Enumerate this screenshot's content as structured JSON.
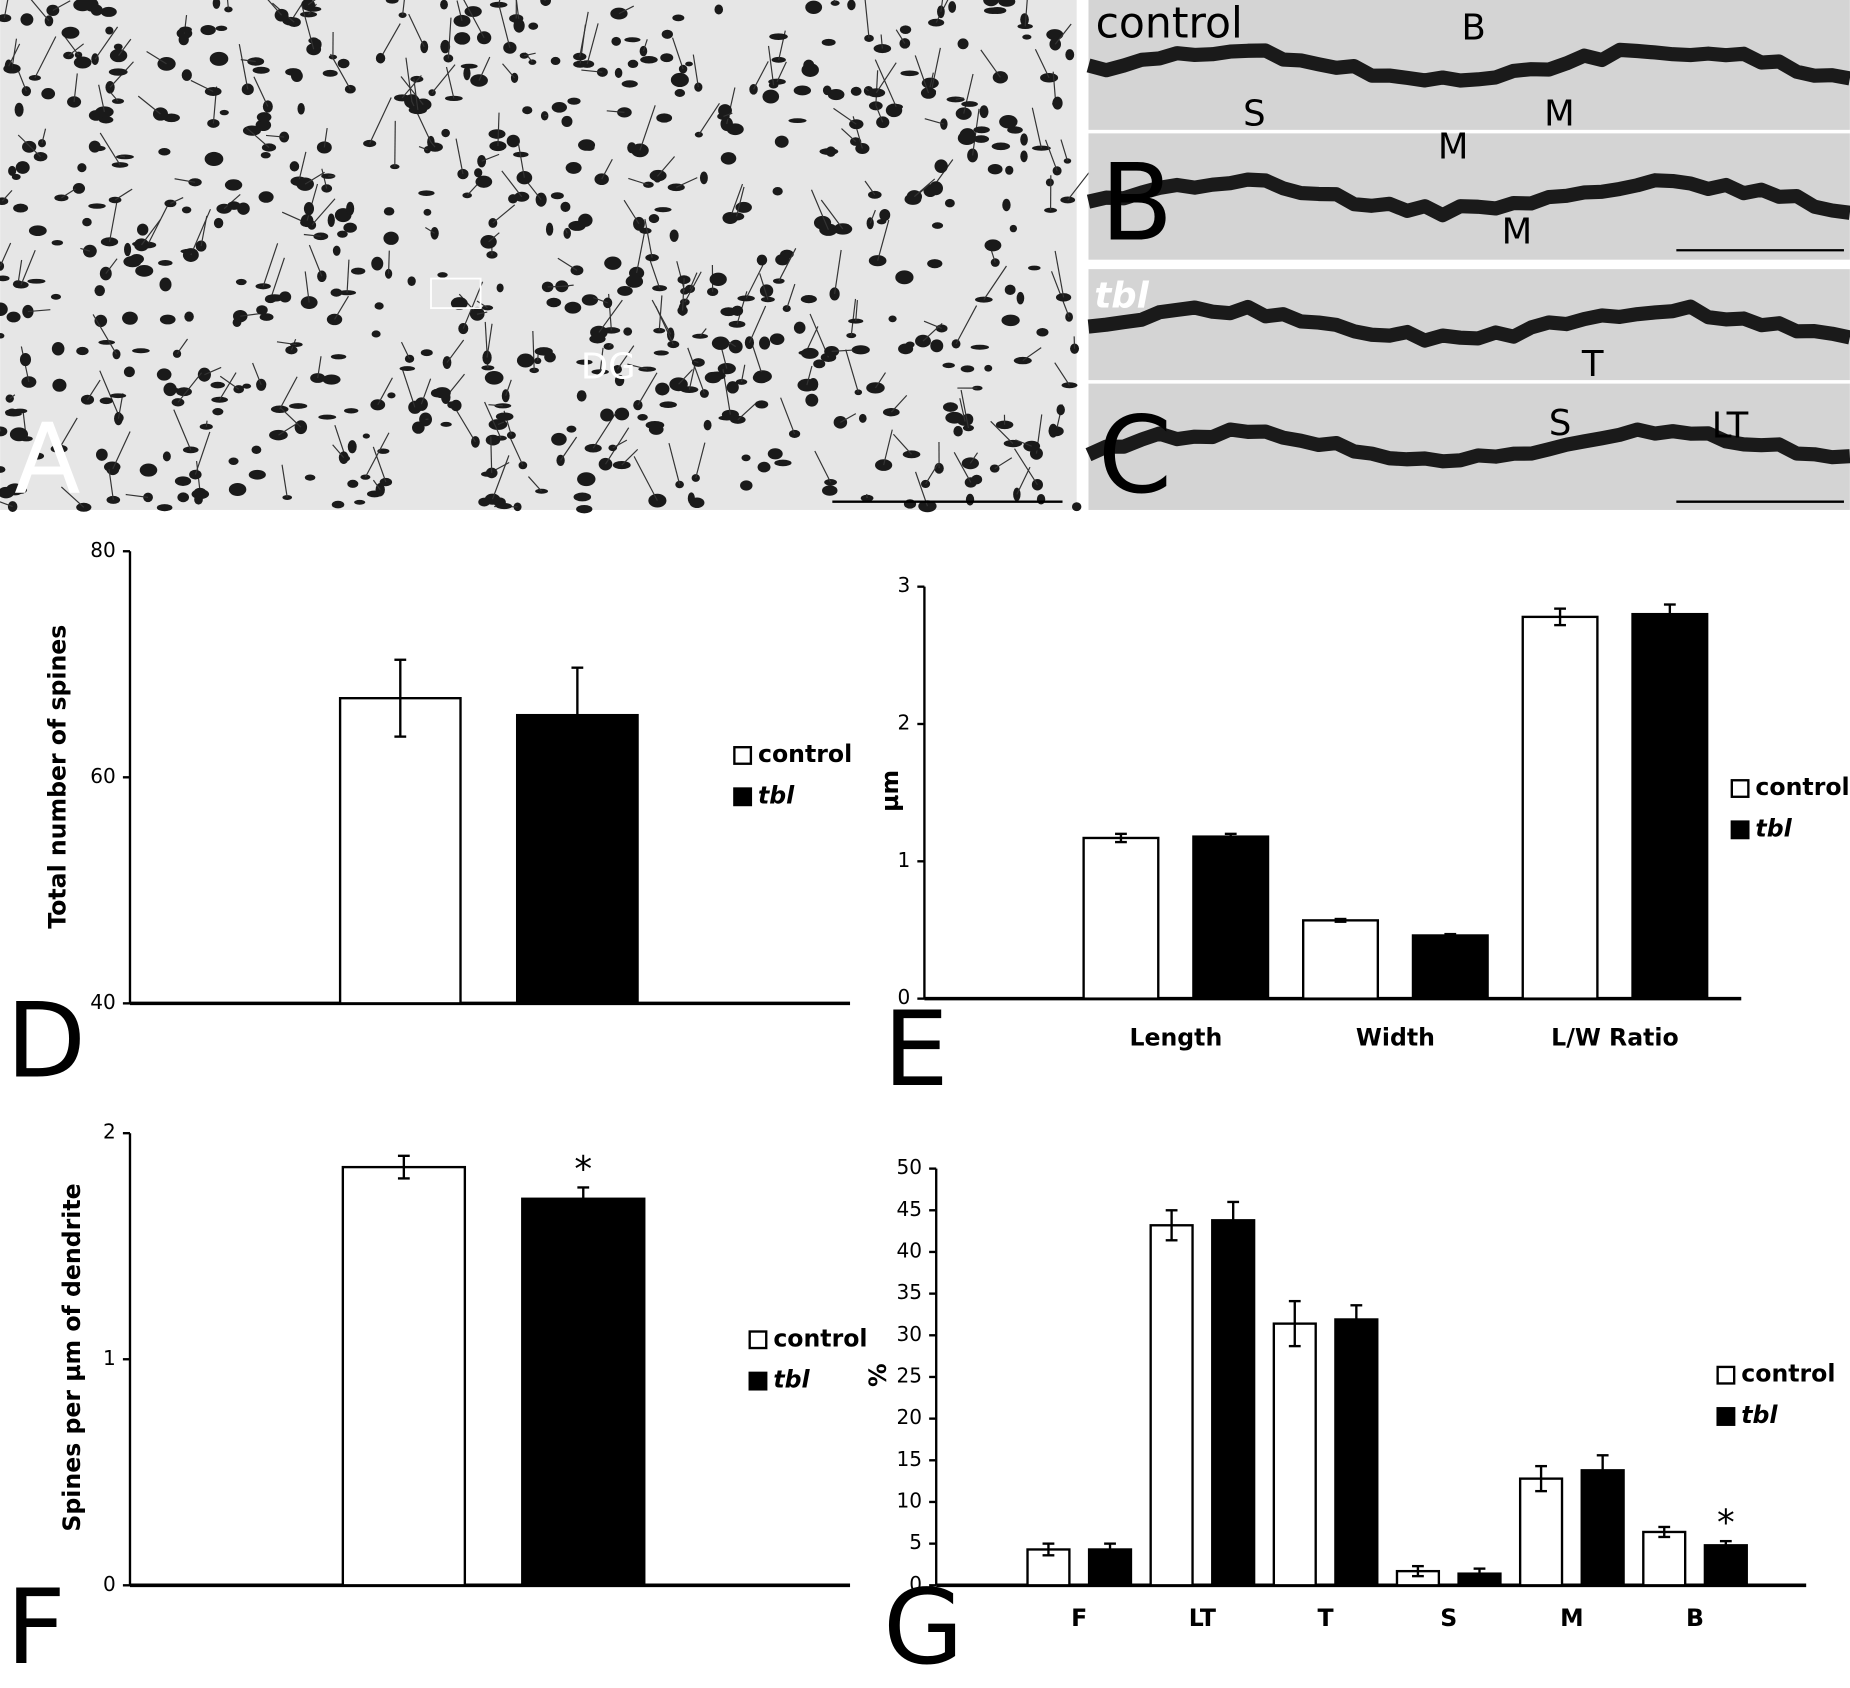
{
  "micrographs": [
    {
      "panel": "A",
      "annotations": [
        "DG"
      ]
    },
    {
      "panel": "B",
      "condition": "control",
      "annotations": [
        "B",
        "S",
        "M",
        "M",
        "M"
      ]
    },
    {
      "panel": "C",
      "condition": "tbl",
      "annotations": [
        "T",
        "S",
        "LT"
      ]
    }
  ],
  "chart_data": [
    {
      "type": "bar",
      "panel_label": "D",
      "y_label": "Total number of spines",
      "categories": [
        null
      ],
      "series": [
        {
          "name": "control",
          "color": "#ffffff",
          "values": [
            67
          ],
          "errors": [
            3.4
          ]
        },
        {
          "name": "tbl",
          "color": "#000000",
          "font_style": "italic",
          "values": [
            65.5
          ],
          "errors": [
            4.2
          ]
        }
      ],
      "ylim": [
        40,
        80
      ],
      "yticks": [
        40,
        60,
        80
      ]
    },
    {
      "type": "bar",
      "panel_label": "E",
      "y_label": "µm",
      "categories": [
        "Length",
        "Width",
        "L/W Ratio"
      ],
      "series": [
        {
          "name": "control",
          "color": "#ffffff",
          "values": [
            1.17,
            0.57,
            2.78
          ],
          "errors": [
            0.03,
            0.01,
            0.06
          ]
        },
        {
          "name": "tbl",
          "color": "#000000",
          "font_style": "italic",
          "values": [
            1.18,
            0.46,
            2.8
          ],
          "errors": [
            0.02,
            0.01,
            0.07
          ]
        }
      ],
      "ylim": [
        0,
        3
      ],
      "yticks": [
        0,
        1,
        2,
        3
      ]
    },
    {
      "type": "bar",
      "panel_label": "F",
      "y_label": "Spines per µm of dendrite",
      "categories": [
        null
      ],
      "series": [
        {
          "name": "control",
          "color": "#ffffff",
          "values": [
            1.85
          ],
          "errors": [
            0.05
          ]
        },
        {
          "name": "tbl",
          "color": "#000000",
          "font_style": "italic",
          "values": [
            1.71
          ],
          "errors": [
            0.05
          ],
          "markers": [
            "*"
          ]
        }
      ],
      "ylim": [
        0,
        2
      ],
      "yticks": [
        0,
        1,
        2
      ]
    },
    {
      "type": "bar",
      "panel_label": "G",
      "y_label": "%",
      "categories": [
        "F",
        "LT",
        "T",
        "S",
        "M",
        "B"
      ],
      "series": [
        {
          "name": "control",
          "color": "#ffffff",
          "values": [
            4.3,
            43.2,
            31.4,
            1.7,
            12.8,
            6.4
          ],
          "errors": [
            0.7,
            1.8,
            2.7,
            0.6,
            1.5,
            0.6
          ]
        },
        {
          "name": "tbl",
          "color": "#000000",
          "font_style": "italic",
          "values": [
            4.3,
            43.8,
            31.9,
            1.4,
            13.8,
            4.8
          ],
          "errors": [
            0.7,
            2.2,
            1.7,
            0.6,
            1.8,
            0.5
          ],
          "markers": [
            null,
            null,
            null,
            null,
            null,
            "*"
          ]
        }
      ],
      "ylim": [
        0,
        50
      ],
      "yticks": [
        0,
        5,
        10,
        15,
        20,
        25,
        30,
        35,
        40,
        45,
        50
      ]
    }
  ]
}
